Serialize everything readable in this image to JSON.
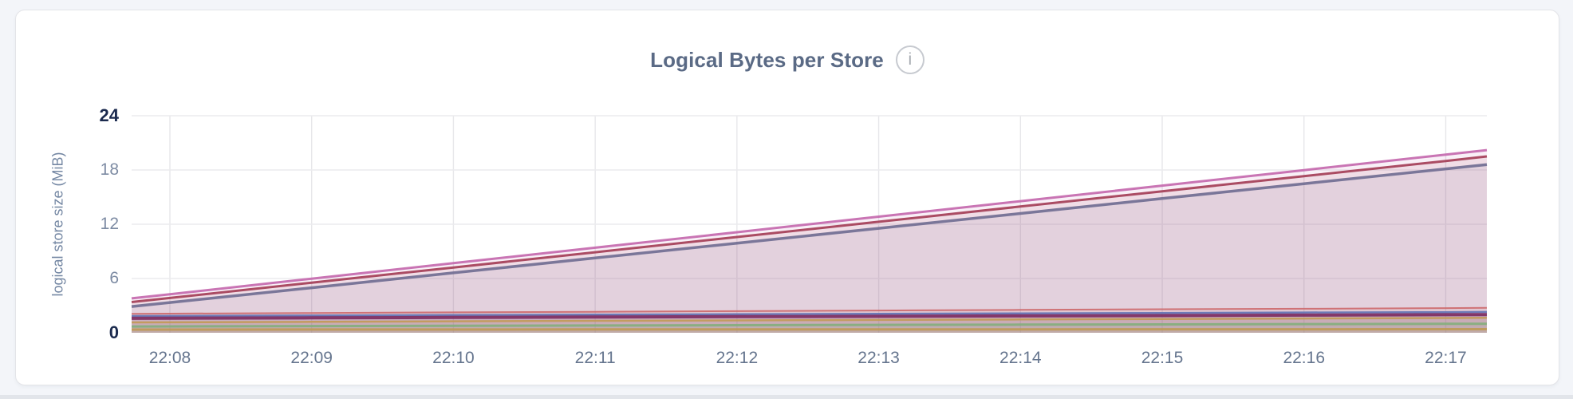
{
  "icons": {
    "info": "i"
  },
  "chart_data": {
    "type": "area",
    "title": "Logical Bytes per Store",
    "ylabel": "logical store size (MiB)",
    "legend": "none",
    "grid": true,
    "ylim": [
      0,
      24
    ],
    "y_ticks": [
      0,
      6,
      12,
      18,
      24
    ],
    "y_tick_emphasis": [
      0,
      24
    ],
    "x_tick_labels": [
      "22:08",
      "22:09",
      "22:10",
      "22:11",
      "22:12",
      "22:13",
      "22:14",
      "22:15",
      "22:16",
      "22:17"
    ],
    "x_tick_positions": [
      0,
      1,
      2,
      3,
      4,
      5,
      6,
      7,
      8,
      9
    ],
    "x_range": [
      -0.27,
      9.29
    ],
    "x_points": [
      -0.27,
      0,
      1,
      2,
      3,
      4,
      5,
      6,
      7,
      8,
      9,
      9.29
    ],
    "series": [
      {
        "id": "s1",
        "color": "#c469ae",
        "line_width": 3,
        "values": [
          3.8,
          4.26,
          5.98,
          7.69,
          9.41,
          11.12,
          12.84,
          14.55,
          16.27,
          17.98,
          19.7,
          20.2
        ]
      },
      {
        "id": "s2",
        "color": "#a43e57",
        "line_width": 3,
        "values": [
          3.4,
          3.85,
          5.54,
          7.22,
          8.9,
          10.59,
          12.27,
          13.96,
          15.64,
          17.32,
          19.0,
          19.5
        ]
      },
      {
        "id": "s3",
        "color": "#716e93",
        "line_width": 3.5,
        "values": [
          2.9,
          3.34,
          4.98,
          6.63,
          8.27,
          9.91,
          11.55,
          13.19,
          14.84,
          16.48,
          18.12,
          18.6
        ]
      },
      {
        "id": "s4",
        "color": "#cd6a6d",
        "line_width": 2,
        "values": [
          2.1,
          2.12,
          2.19,
          2.26,
          2.32,
          2.39,
          2.46,
          2.53,
          2.6,
          2.66,
          2.73,
          2.75
        ]
      },
      {
        "id": "s5",
        "color": "#6374b5",
        "line_width": 2.5,
        "values": [
          1.85,
          1.86,
          1.91,
          1.96,
          2.0,
          2.05,
          2.1,
          2.14,
          2.19,
          2.24,
          2.28,
          2.3
        ]
      },
      {
        "id": "s6",
        "color": "#7d2d62",
        "line_width": 4,
        "values": [
          1.6,
          1.61,
          1.65,
          1.69,
          1.74,
          1.78,
          1.82,
          1.86,
          1.9,
          1.95,
          1.99,
          2.0
        ]
      },
      {
        "id": "s7",
        "color": "#c29a57",
        "line_width": 2.5,
        "values": [
          1.15,
          1.16,
          1.21,
          1.27,
          1.32,
          1.37,
          1.42,
          1.47,
          1.53,
          1.58,
          1.63,
          1.65
        ]
      },
      {
        "id": "s8",
        "color": "#84ae7d",
        "line_width": 3,
        "values": [
          0.7,
          0.71,
          0.74,
          0.77,
          0.8,
          0.84,
          0.87,
          0.9,
          0.93,
          0.96,
          0.99,
          1.0
        ]
      },
      {
        "id": "s9",
        "color": "#bf9a58",
        "line_width": 3,
        "values": [
          0.35,
          0.35,
          0.36,
          0.36,
          0.37,
          0.37,
          0.38,
          0.38,
          0.39,
          0.39,
          0.4,
          0.4
        ]
      }
    ],
    "style": {
      "fill_opacity": 0.1,
      "h_grid_color": "#ebebee",
      "v_grid_color": "#e7e7ea"
    }
  }
}
